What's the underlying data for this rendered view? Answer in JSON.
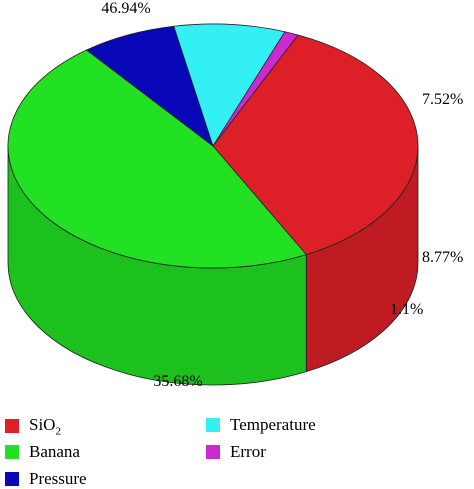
{
  "chart_data": {
    "type": "pie",
    "title": "",
    "categories": [
      "SiO2",
      "Banana",
      "Pressure",
      "Temperature",
      "Error"
    ],
    "values": [
      35.68,
      46.94,
      7.52,
      8.77,
      1.1
    ],
    "value_labels": [
      "35.68%",
      "46.94%",
      "7.52%",
      "8.77%",
      "1.1%"
    ],
    "colors": [
      "#dd2027",
      "#22e022",
      "#0808b8",
      "#33f0f4",
      "#cc2ad0"
    ],
    "style": "3d",
    "legend_position": "bottom"
  },
  "legend": {
    "items": [
      {
        "label": "SiO",
        "subscript": "2",
        "color": "#dd2027"
      },
      {
        "label": "Banana",
        "subscript": "",
        "color": "#22e022"
      },
      {
        "label": "Pressure",
        "subscript": "",
        "color": "#0808b8"
      },
      {
        "label": "Temperature",
        "subscript": "",
        "color": "#33f0f4"
      },
      {
        "label": "Error",
        "subscript": "",
        "color": "#cc2ad0"
      }
    ]
  }
}
